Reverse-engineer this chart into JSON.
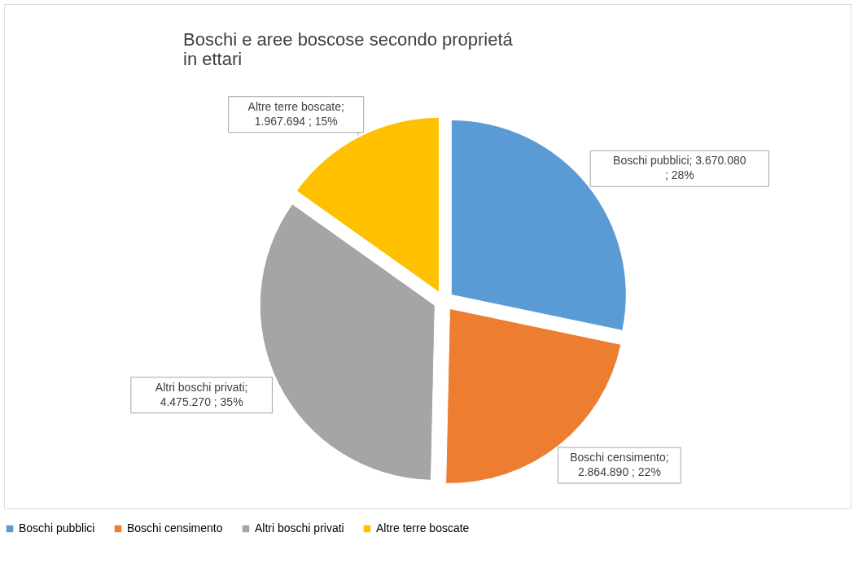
{
  "chart_data": {
    "type": "pie",
    "title": "Boschi e aree boscose secondo proprietá in ettari",
    "categories": [
      "Boschi pubblici",
      "Boschi censimento",
      "Altri boschi privati",
      "Altre terre boscate"
    ],
    "values": [
      3670080,
      2864890,
      4475270,
      1967694
    ],
    "colors": [
      "#5b9bd5",
      "#ed7d31",
      "#a5a5a5",
      "#ffc000"
    ],
    "value_labels": [
      "Boschi pubblici;  3.670.080\n; 28%",
      "Boschi censimento;\n2.864.890  ; 22%",
      "Altri boschi privati;\n4.475.270  ; 35%",
      "Altre terre boscate;\n1.967.694  ; 15%"
    ],
    "legend": "bottom"
  }
}
